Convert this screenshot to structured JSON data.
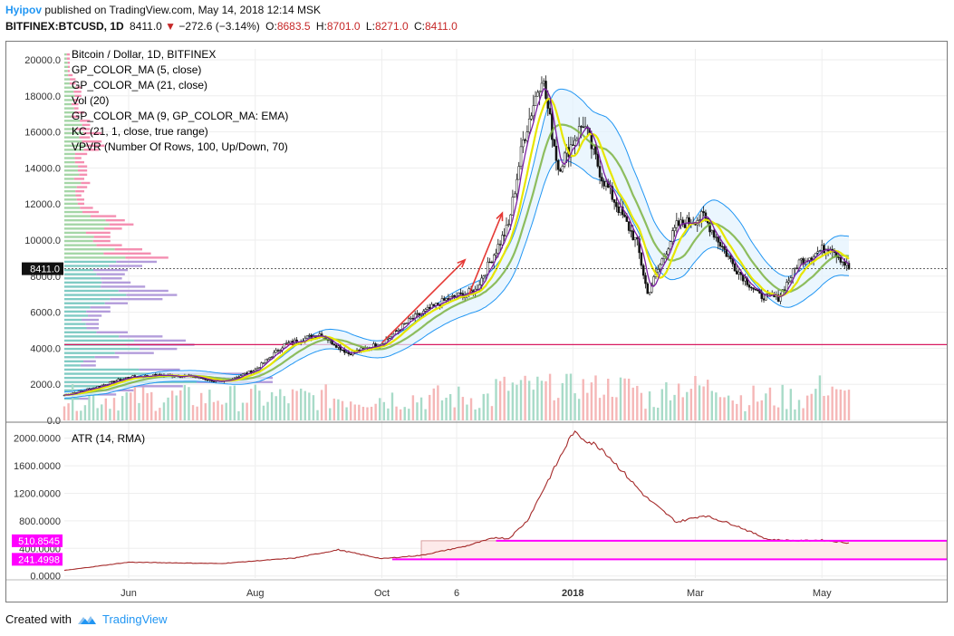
{
  "header": {
    "author": "Hyipov",
    "published_text": "published on TradingView.com, May 14, 2018 12:14 MSK",
    "symbol": "BITFINEX:BTCUSD, 1D",
    "last_price": "8411.0",
    "change": "−272.6 (−3.14%)",
    "ohlc": [
      {
        "label": "O:",
        "value": "8683.5"
      },
      {
        "label": "H:",
        "value": "8701.0"
      },
      {
        "label": "L:",
        "value": "8271.0"
      },
      {
        "label": "C:",
        "value": "8411.0"
      }
    ]
  },
  "legend": [
    "Bitcoin / Dollar, 1D, BITFINEX",
    "GP_COLOR_MA (5, close)",
    "GP_COLOR_MA (21, close)",
    "Vol (20)",
    "GP_COLOR_MA (9, GP_COLOR_MA: EMA)",
    "KC (21, 1, close, true range)",
    "VPVR (Number Of Rows, 100, Up/Down, 70)"
  ],
  "atr_title": "ATR (14, RMA)",
  "price_label": "8411.0",
  "atr_markers": [
    {
      "label": "510.8545",
      "value": 510.8545
    },
    {
      "label": "241.4998",
      "value": 241.4998
    }
  ],
  "horizontal_level": 4200,
  "colors": {
    "up": "#26a69a",
    "down": "#ef5350",
    "candle": "#111111",
    "ma_fast": "#7b1fa2",
    "ma_slow": "#e6e600",
    "ma_mid": "#7cb342",
    "kc": "#2196f3",
    "atr": "#a52a2a",
    "marker": "#ff00ff",
    "level": "#d81b60",
    "arrow": "#e53935"
  },
  "footer": {
    "prefix": "Created with",
    "brand": "TradingView"
  },
  "chart_data": [
    {
      "type": "line",
      "title": "Bitcoin / Dollar, 1D, BITFINEX",
      "x_tick_labels": [
        "Jun",
        "Aug",
        "Oct",
        "6",
        "2018",
        "Mar",
        "May"
      ],
      "y_tick_labels": [
        "0.0",
        "2000.0",
        "4000.0",
        "6000.0",
        "8000.0",
        "10000.0",
        "12000.0",
        "14000.0",
        "16000.0",
        "18000.0",
        "20000.0"
      ],
      "ylim": [
        0,
        20500
      ],
      "grid": true,
      "series": [
        {
          "name": "Bitcoin / Dollar, 1D, BITFINEX",
          "x": [
            "2017-05-01",
            "2017-05-15",
            "2017-06-01",
            "2017-06-15",
            "2017-07-01",
            "2017-07-16",
            "2017-08-01",
            "2017-08-15",
            "2017-09-01",
            "2017-09-15",
            "2017-10-01",
            "2017-10-15",
            "2017-11-01",
            "2017-11-15",
            "2017-12-01",
            "2017-12-08",
            "2017-12-17",
            "2017-12-25",
            "2018-01-06",
            "2018-01-15",
            "2018-02-01",
            "2018-02-06",
            "2018-02-20",
            "2018-03-05",
            "2018-03-20",
            "2018-04-01",
            "2018-04-10",
            "2018-04-20",
            "2018-05-05",
            "2018-05-14"
          ],
          "values": [
            1400,
            1800,
            2400,
            2500,
            2450,
            2100,
            2800,
            4200,
            4800,
            3700,
            4300,
            5600,
            6700,
            7200,
            10800,
            15500,
            19200,
            14000,
            16500,
            13500,
            9800,
            7000,
            10800,
            11300,
            8500,
            6900,
            6800,
            8800,
            9700,
            8411
          ]
        }
      ],
      "annotations": [
        "8411.0"
      ]
    },
    {
      "type": "line",
      "title": "ATR (14, RMA)",
      "x_tick_labels": [
        "Jun",
        "Aug",
        "Oct",
        "6",
        "2018",
        "Mar",
        "May"
      ],
      "y_tick_labels": [
        "0.0000",
        "400.0000",
        "800.0000",
        "1200.0000",
        "1600.0000",
        "2000.0000"
      ],
      "ylim": [
        -30,
        2180
      ],
      "grid": true,
      "series": [
        {
          "name": "ATR (14, RMA)",
          "x": [
            "2017-05-01",
            "2017-06-01",
            "2017-07-15",
            "2017-08-20",
            "2017-09-10",
            "2017-10-01",
            "2017-10-20",
            "2017-11-10",
            "2017-11-25",
            "2017-12-01",
            "2017-12-10",
            "2017-12-22",
            "2018-01-01",
            "2018-01-15",
            "2018-02-05",
            "2018-02-20",
            "2018-03-05",
            "2018-03-20",
            "2018-04-05",
            "2018-04-20",
            "2018-05-01",
            "2018-05-14"
          ],
          "values": [
            80,
            200,
            180,
            260,
            380,
            250,
            300,
            430,
            560,
            540,
            800,
            1500,
            2080,
            1850,
            1150,
            780,
            880,
            740,
            530,
            510,
            520,
            480
          ]
        }
      ],
      "annotations": [
        "510.8545",
        "241.4998"
      ]
    }
  ]
}
